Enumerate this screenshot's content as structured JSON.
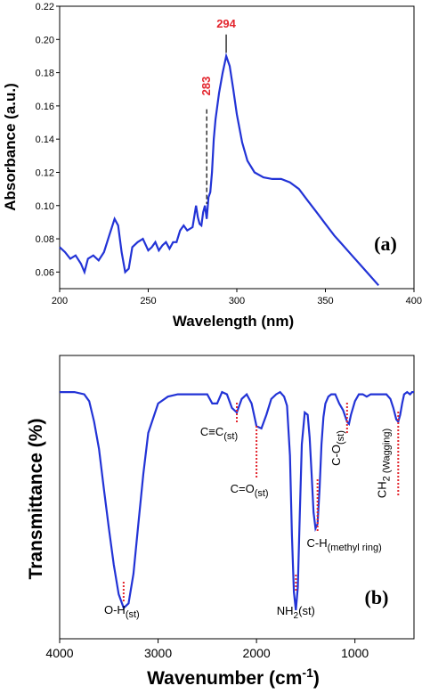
{
  "chart_data": [
    {
      "panel_label": "(a)",
      "type": "line",
      "xlabel": "Wavelength (nm)",
      "ylabel": "Absorbance (a.u.)",
      "xlim": [
        200,
        400
      ],
      "ylim": [
        0.05,
        0.22
      ],
      "xticks": [
        "200",
        "250",
        "300",
        "350",
        "400"
      ],
      "yticks": [
        "0.06",
        "0.08",
        "0.10",
        "0.12",
        "0.14",
        "0.16",
        "0.18",
        "0.20",
        "0.22"
      ],
      "color": "#2233d6",
      "series": [
        {
          "x": [
            200,
            203,
            206,
            209,
            212,
            214,
            216,
            219,
            222,
            225,
            228,
            231,
            233,
            235,
            237,
            239,
            241,
            244,
            247,
            250,
            252,
            254,
            256,
            258,
            260,
            262,
            264,
            266,
            268,
            270,
            272,
            275,
            277,
            278,
            279,
            280,
            281,
            282,
            283,
            284,
            285,
            286,
            287,
            288,
            289,
            290,
            292,
            294,
            296,
            298,
            300,
            303,
            306,
            310,
            315,
            320,
            325,
            330,
            335,
            340,
            345,
            350,
            355,
            360,
            365,
            370,
            375,
            380
          ],
          "y": [
            0.075,
            0.072,
            0.068,
            0.07,
            0.065,
            0.06,
            0.068,
            0.07,
            0.067,
            0.072,
            0.082,
            0.092,
            0.088,
            0.072,
            0.06,
            0.062,
            0.075,
            0.078,
            0.08,
            0.073,
            0.075,
            0.078,
            0.073,
            0.076,
            0.078,
            0.074,
            0.078,
            0.078,
            0.085,
            0.088,
            0.085,
            0.087,
            0.1,
            0.093,
            0.089,
            0.088,
            0.096,
            0.1,
            0.092,
            0.105,
            0.108,
            0.12,
            0.14,
            0.152,
            0.16,
            0.168,
            0.18,
            0.19,
            0.184,
            0.17,
            0.155,
            0.138,
            0.127,
            0.12,
            0.117,
            0.116,
            0.116,
            0.114,
            0.11,
            0.103,
            0.096,
            0.089,
            0.082,
            0.076,
            0.07,
            0.064,
            0.058,
            0.052
          ]
        }
      ],
      "peak_labels": [
        {
          "text": "294",
          "x": 294
        },
        {
          "text": "283",
          "x": 283
        }
      ]
    },
    {
      "panel_label": "(b)",
      "type": "line",
      "xlabel_main": "Wavenumber (cm",
      "xlabel_sup": "-1",
      "xlabel_end": ")",
      "ylabel": "Transmittance (%)",
      "xlim": [
        4000,
        400
      ],
      "xticks": [
        "4000",
        "3000",
        "2000",
        "1000"
      ],
      "y_unit": "relative transmittance, arbitrary",
      "color": "#2233d6",
      "series": [
        {
          "x": [
            4000,
            3850,
            3750,
            3700,
            3650,
            3600,
            3550,
            3500,
            3450,
            3400,
            3350,
            3300,
            3250,
            3200,
            3150,
            3100,
            3000,
            2900,
            2800,
            2700,
            2600,
            2500,
            2450,
            2400,
            2350,
            2300,
            2250,
            2200,
            2150,
            2100,
            2050,
            2000,
            1950,
            1900,
            1850,
            1800,
            1760,
            1720,
            1690,
            1660,
            1640,
            1620,
            1600,
            1580,
            1560,
            1540,
            1510,
            1480,
            1460,
            1440,
            1420,
            1400,
            1380,
            1360,
            1340,
            1320,
            1300,
            1270,
            1240,
            1200,
            1160,
            1120,
            1080,
            1060,
            1040,
            1000,
            960,
            920,
            880,
            840,
            800,
            760,
            720,
            680,
            640,
            610,
            580,
            560,
            540,
            520,
            500,
            470,
            440,
            420,
            400
          ],
          "y": [
            0.98,
            0.98,
            0.97,
            0.94,
            0.85,
            0.73,
            0.55,
            0.38,
            0.22,
            0.09,
            0.03,
            0.05,
            0.18,
            0.4,
            0.62,
            0.8,
            0.93,
            0.96,
            0.97,
            0.97,
            0.97,
            0.97,
            0.93,
            0.93,
            0.98,
            0.97,
            0.91,
            0.89,
            0.95,
            0.97,
            0.93,
            0.83,
            0.82,
            0.88,
            0.95,
            0.97,
            0.98,
            0.96,
            0.92,
            0.7,
            0.35,
            0.1,
            0.02,
            0.12,
            0.45,
            0.75,
            0.89,
            0.88,
            0.78,
            0.62,
            0.45,
            0.38,
            0.4,
            0.55,
            0.75,
            0.87,
            0.93,
            0.96,
            0.97,
            0.97,
            0.93,
            0.9,
            0.85,
            0.84,
            0.88,
            0.94,
            0.97,
            0.97,
            0.96,
            0.97,
            0.97,
            0.97,
            0.97,
            0.97,
            0.95,
            0.91,
            0.86,
            0.85,
            0.88,
            0.93,
            0.97,
            0.98,
            0.97,
            0.98,
            0.98
          ]
        }
      ],
      "annotations": [
        {
          "main": "O-H",
          "sub": "(st)",
          "x": 3350
        },
        {
          "main": "C≡C",
          "sub": "(st)",
          "x": 2200
        },
        {
          "main": "C=O",
          "sub": "(st)",
          "x": 2000
        },
        {
          "main": "NH",
          "sub2": "2",
          "after": "(st)",
          "x": 1600
        },
        {
          "main": "C-H",
          "sub": "(methyl ring)",
          "x": 1380
        },
        {
          "main": "C-O",
          "sub": "(st)",
          "x": 1080
        },
        {
          "main": "CH",
          "sub": "2 (Wagging)",
          "x": 560
        }
      ]
    }
  ]
}
